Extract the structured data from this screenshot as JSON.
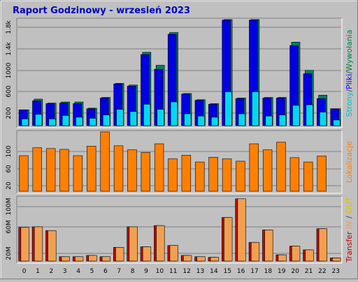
{
  "title": "Raport Godzinowy -  wrzesień 2023",
  "side_labels": {
    "top": {
      "parts": [
        "Strony",
        "/",
        "Pliki",
        "/",
        "Wywołania"
      ],
      "colors": [
        "#00c0c0",
        "#404040",
        "#0000ff",
        "#404040",
        "#008040"
      ]
    },
    "middle": {
      "parts": [
        "Lokalizacje"
      ],
      "colors": [
        "#ff8000"
      ]
    },
    "bottom": {
      "parts": [
        "Transfer",
        " IN",
        " / ",
        "OUT"
      ],
      "colors": [
        "#c00000",
        "#f0a050",
        "#404040",
        "#e0c000"
      ]
    }
  },
  "chart_data": [
    {
      "type": "bar",
      "title": "Raport Godzinowy -  wrzesień 2023",
      "categories": [
        "0",
        "1",
        "2",
        "3",
        "4",
        "5",
        "6",
        "7",
        "8",
        "9",
        "10",
        "11",
        "12",
        "13",
        "14",
        "15",
        "16",
        "17",
        "18",
        "19",
        "20",
        "21",
        "22",
        "23"
      ],
      "yticks": [
        "200",
        "600",
        "1000",
        "1.4k",
        "1.8k"
      ],
      "ylim": [
        0,
        1880
      ],
      "series": [
        {
          "name": "Wywołania",
          "color": "#008060",
          "values": [
            280,
            470,
            400,
            420,
            420,
            310,
            500,
            750,
            720,
            1300,
            1070,
            1650,
            570,
            460,
            390,
            1880,
            490,
            1880,
            500,
            500,
            1480,
            980,
            540,
            300
          ]
        },
        {
          "name": "Pliki",
          "color": "#0000e0",
          "values": [
            280,
            440,
            390,
            400,
            390,
            300,
            490,
            740,
            700,
            1260,
            1000,
            1620,
            560,
            450,
            380,
            1870,
            480,
            1870,
            490,
            490,
            1420,
            920,
            480,
            300
          ]
        },
        {
          "name": "Strony",
          "color": "#00d8f0",
          "values": [
            120,
            200,
            120,
            180,
            150,
            130,
            190,
            290,
            250,
            380,
            290,
            420,
            210,
            170,
            150,
            600,
            210,
            600,
            170,
            190,
            360,
            370,
            240,
            100
          ]
        }
      ]
    },
    {
      "type": "bar",
      "categories": [
        "0",
        "1",
        "2",
        "3",
        "4",
        "5",
        "6",
        "7",
        "8",
        "9",
        "10",
        "11",
        "12",
        "13",
        "14",
        "15",
        "16",
        "17",
        "18",
        "19",
        "20",
        "21",
        "22",
        "23"
      ],
      "yticks": [
        "20",
        "60",
        "100"
      ],
      "ylim": [
        0,
        150
      ],
      "series": [
        {
          "name": "Lokalizacje",
          "color": "#ff8000",
          "values": [
            90,
            110,
            108,
            106,
            90,
            114,
            150,
            115,
            105,
            98,
            120,
            82,
            91,
            74,
            86,
            82,
            76,
            120,
            105,
            124,
            85,
            74,
            89,
            0
          ]
        }
      ]
    },
    {
      "type": "bar",
      "categories": [
        "0",
        "1",
        "2",
        "3",
        "4",
        "5",
        "6",
        "7",
        "8",
        "9",
        "10",
        "11",
        "12",
        "13",
        "14",
        "15",
        "16",
        "17",
        "18",
        "19",
        "20",
        "21",
        "22",
        "23"
      ],
      "yticks": [
        "20M",
        "60M",
        "100M"
      ],
      "ylim": [
        0,
        102
      ],
      "series": [
        {
          "name": "IN",
          "color": "#c00000",
          "values": [
            54,
            55,
            49,
            7,
            7,
            9,
            7,
            22,
            55,
            23,
            57,
            25,
            9,
            7,
            6,
            70,
            100,
            30,
            50,
            10,
            24,
            18,
            52,
            5
          ]
        },
        {
          "name": "OUT",
          "color": "#f0a050",
          "values": [
            54,
            55,
            49,
            7,
            7,
            9,
            7,
            22,
            55,
            23,
            57,
            25,
            9,
            7,
            6,
            70,
            100,
            30,
            50,
            10,
            24,
            18,
            52,
            5
          ]
        }
      ]
    }
  ]
}
